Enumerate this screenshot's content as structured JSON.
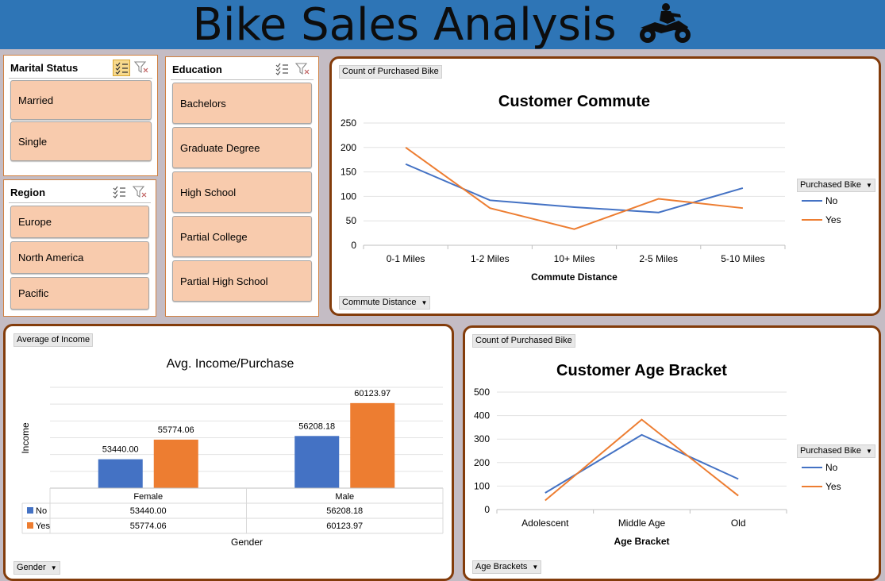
{
  "header": {
    "title": "Bike Sales Analysis"
  },
  "slicers": {
    "marital_status": {
      "title": "Marital Status",
      "items": [
        "Married",
        "Single"
      ]
    },
    "region": {
      "title": "Region",
      "items": [
        "Europe",
        "North America",
        "Pacific"
      ]
    },
    "education": {
      "title": "Education",
      "items": [
        "Bachelors",
        "Graduate Degree",
        "High School",
        "Partial College",
        "Partial High School"
      ]
    }
  },
  "colors": {
    "no": "#4472c4",
    "yes": "#ed7d31",
    "panel_border": "#833c0b",
    "slicer_item": "#f8cbad",
    "header": "#2e75b6"
  },
  "chart_data": [
    {
      "type": "line",
      "title": "Customer Commute",
      "field_button_values": "Count of Purchased Bike",
      "field_button_axis": "Commute Distance",
      "xlabel": "Commute Distance",
      "ylabel": "",
      "categories": [
        "0-1 Miles",
        "1-2 Miles",
        "10+ Miles",
        "2-5 Miles",
        "5-10 Miles"
      ],
      "y_ticks": [
        "0",
        "50",
        "100",
        "150",
        "200",
        "250"
      ],
      "ylim": [
        0,
        250
      ],
      "legend_title": "Purchased Bike",
      "series": [
        {
          "name": "No",
          "values": [
            166,
            92,
            78,
            67,
            117
          ]
        },
        {
          "name": "Yes",
          "values": [
            200,
            76,
            33,
            95,
            76
          ]
        }
      ]
    },
    {
      "type": "bar",
      "title": "Avg. Income/Purchase",
      "field_button_values": "Average of Income",
      "field_button_axis": "Gender",
      "xlabel": "Gender",
      "ylabel": "Income",
      "categories": [
        "Female",
        "Male"
      ],
      "ylim": [
        50000,
        62000
      ],
      "series": [
        {
          "name": "No",
          "values": [
            53440.0,
            56208.18
          ],
          "labels": [
            "53440.00",
            "56208.18"
          ]
        },
        {
          "name": "Yes",
          "values": [
            55774.06,
            60123.97
          ],
          "labels": [
            "55774.06",
            "60123.97"
          ]
        }
      ],
      "data_table": {
        "rows": [
          {
            "name": "No",
            "cells": [
              "53440.00",
              "56208.18"
            ]
          },
          {
            "name": "Yes",
            "cells": [
              "55774.06",
              "60123.97"
            ]
          }
        ]
      }
    },
    {
      "type": "line",
      "title": "Customer Age Bracket",
      "field_button_values": "Count of Purchased Bike",
      "field_button_axis": "Age Brackets",
      "xlabel": "Age Bracket",
      "ylabel": "",
      "categories": [
        "Adolescent",
        "Middle Age",
        "Old"
      ],
      "y_ticks": [
        "0",
        "100",
        "200",
        "300",
        "400",
        "500"
      ],
      "ylim": [
        0,
        500
      ],
      "legend_title": "Purchased Bike",
      "series": [
        {
          "name": "No",
          "values": [
            71,
            318,
            130
          ]
        },
        {
          "name": "Yes",
          "values": [
            39,
            383,
            59
          ]
        }
      ]
    }
  ]
}
